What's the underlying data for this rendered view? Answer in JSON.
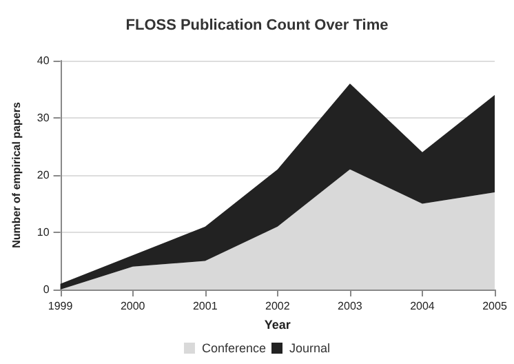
{
  "chart_data": {
    "type": "area",
    "title": "FLOSS Publication Count Over Time",
    "xlabel": "Year",
    "ylabel": "Number of empirical papers",
    "categories": [
      "1999",
      "2000",
      "2001",
      "2002",
      "2003",
      "2004",
      "2005"
    ],
    "series": [
      {
        "name": "Conference",
        "color": "#d9d9d9",
        "values": [
          0,
          4,
          5,
          11,
          21,
          15,
          17
        ]
      },
      {
        "name": "Journal",
        "color": "#222222",
        "values": [
          1,
          2,
          6,
          10,
          15,
          9,
          17
        ]
      }
    ],
    "stacked": true,
    "ylim": [
      0,
      40
    ],
    "yticks": [
      0,
      10,
      20,
      30,
      40
    ],
    "grid": "y",
    "legend": "bottom"
  }
}
